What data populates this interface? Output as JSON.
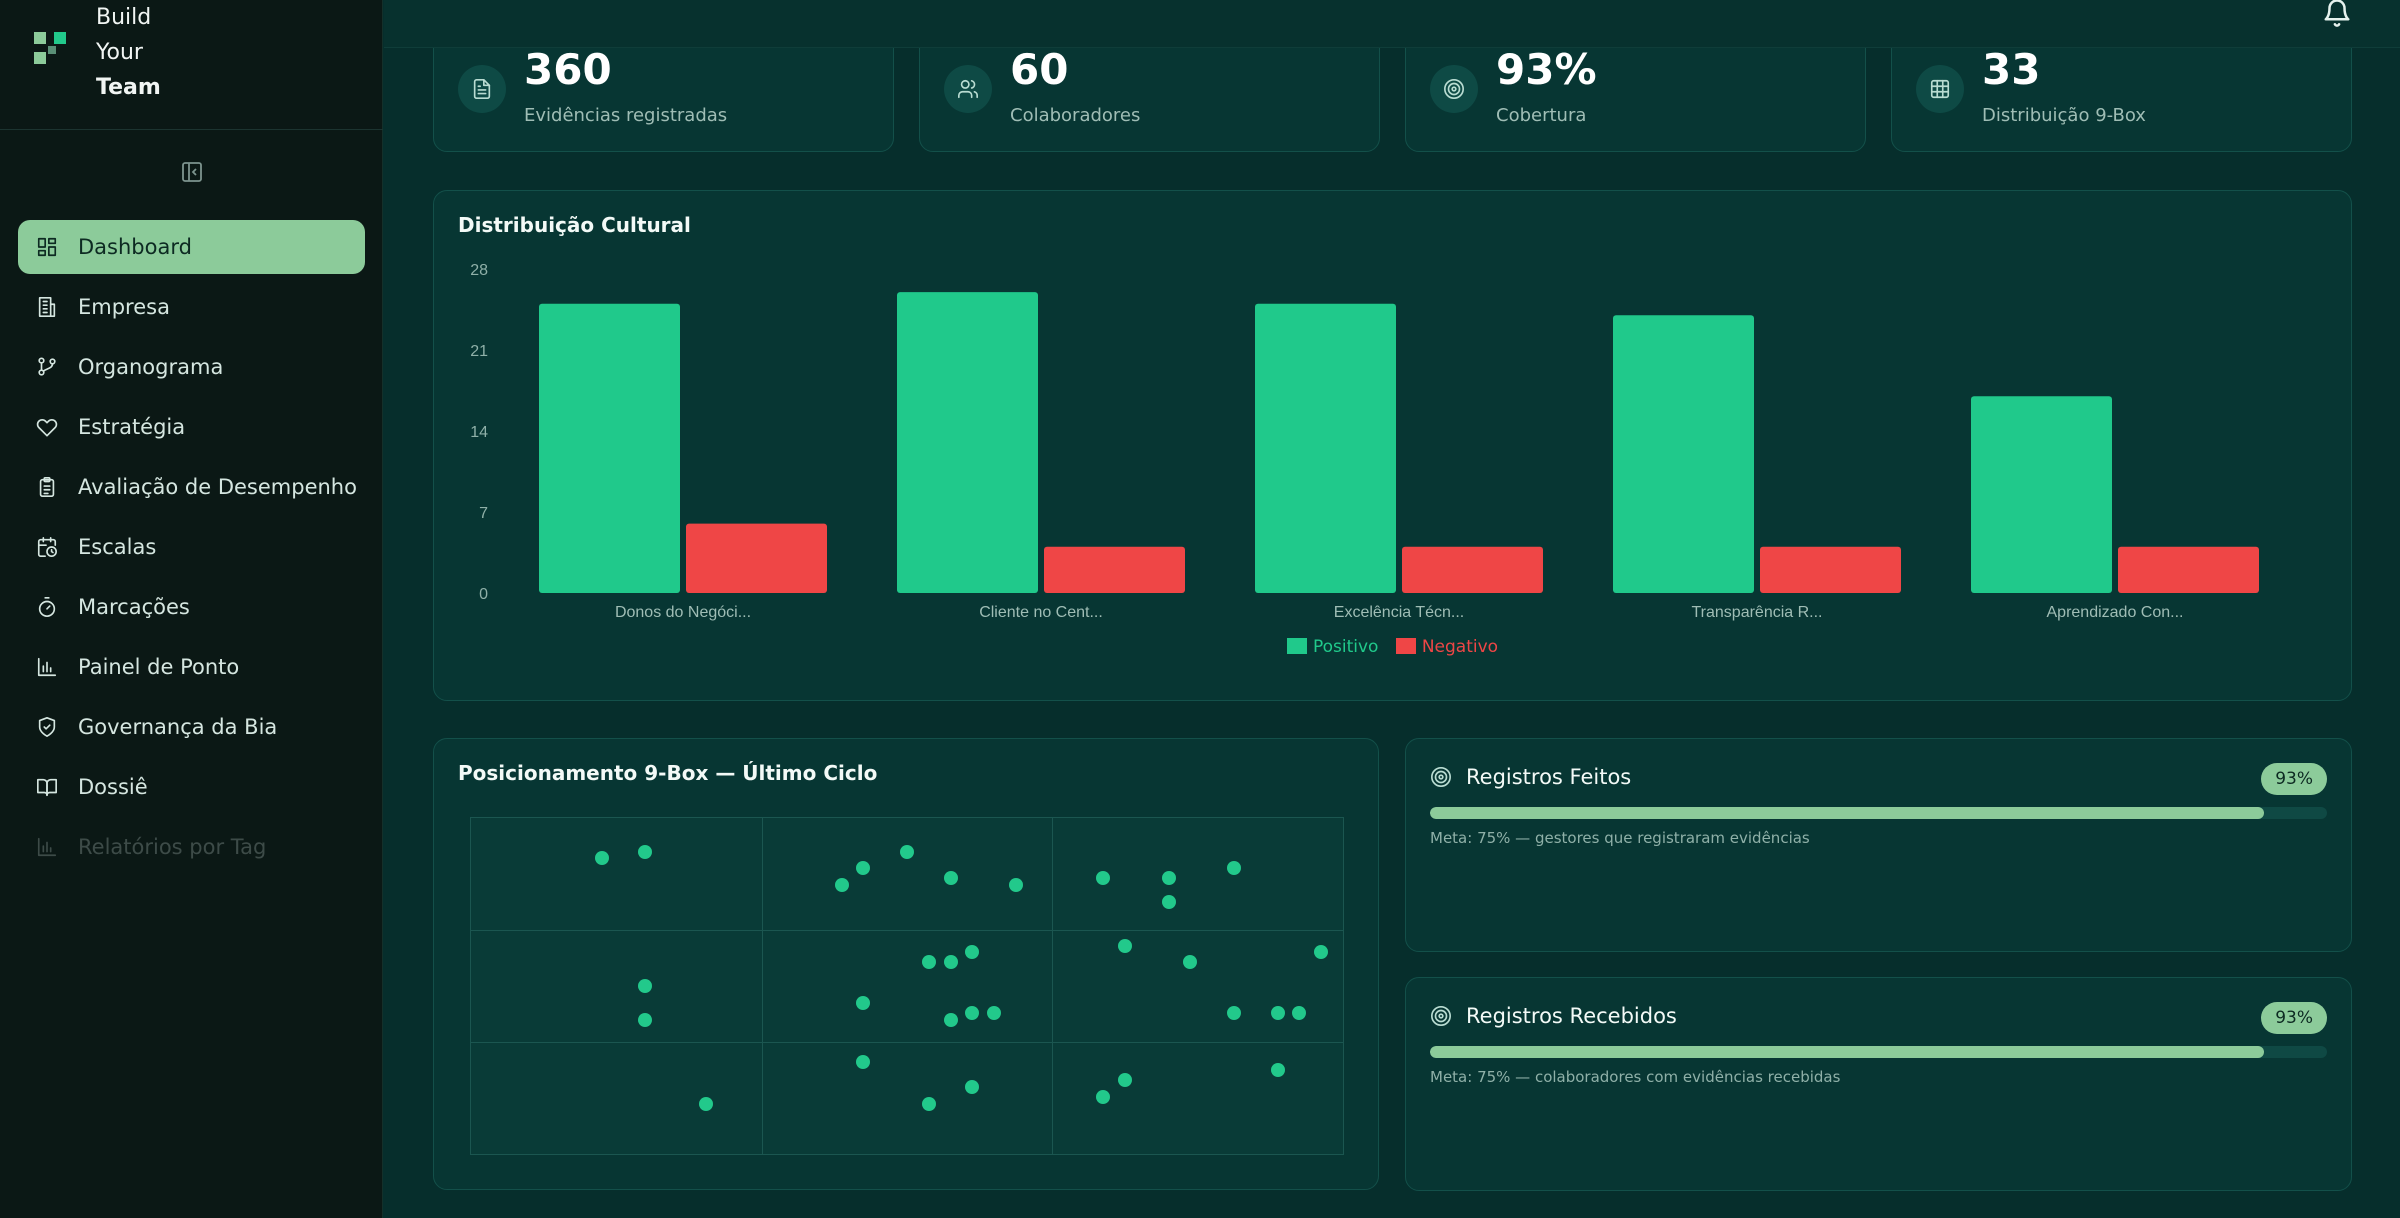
{
  "brand": {
    "line1": "Build",
    "line2": "Your",
    "line3": "Team"
  },
  "sidebar": {
    "items": [
      {
        "label": "Dashboard",
        "icon": "dashboard-icon",
        "active": true
      },
      {
        "label": "Empresa",
        "icon": "building-icon"
      },
      {
        "label": "Organograma",
        "icon": "git-branch-icon"
      },
      {
        "label": "Estratégia",
        "icon": "heart-icon"
      },
      {
        "label": "Avaliação de Desempenho",
        "icon": "clipboard-icon"
      },
      {
        "label": "Escalas",
        "icon": "calendar-clock-icon"
      },
      {
        "label": "Marcações",
        "icon": "timer-icon"
      },
      {
        "label": "Painel de Ponto",
        "icon": "bar-chart-icon"
      },
      {
        "label": "Governança da Bia",
        "icon": "shield-check-icon"
      },
      {
        "label": "Dossiê",
        "icon": "book-open-icon"
      },
      {
        "label": "Relatórios por Tag",
        "icon": "bar-chart-icon"
      }
    ]
  },
  "stats": [
    {
      "value": "360",
      "label": "Evidências registradas",
      "icon": "file-text-icon"
    },
    {
      "value": "60",
      "label": "Colaboradores",
      "icon": "users-icon"
    },
    {
      "value": "93%",
      "label": "Cobertura",
      "icon": "target-icon"
    },
    {
      "value": "33",
      "label": "Distribuição 9-Box",
      "icon": "grid-icon"
    }
  ],
  "culture_panel": {
    "title": "Distribuição Cultural"
  },
  "chart_data": {
    "type": "bar",
    "title": "Distribuição Cultural",
    "categories": [
      "Donos do Negóci...",
      "Cliente no Cent...",
      "Excelência Técn...",
      "Transparência R...",
      "Aprendizado Con..."
    ],
    "series": [
      {
        "name": "Positivo",
        "values": [
          25,
          26,
          25,
          24,
          17
        ],
        "color": "#20c98b"
      },
      {
        "name": "Negativo",
        "values": [
          6,
          4,
          4,
          4,
          4
        ],
        "color": "#ef4646"
      }
    ],
    "yticks": [
      "0",
      "7",
      "14",
      "21",
      "28"
    ],
    "ylim": [
      0,
      28
    ],
    "grid": false,
    "legend": "bottom-center"
  },
  "ninebox": {
    "title": "Posicionamento 9-Box — Último Ciclo",
    "points": [
      {
        "x": 0.15,
        "y": 0.88
      },
      {
        "x": 0.2,
        "y": 0.9
      },
      {
        "x": 0.2,
        "y": 0.5
      },
      {
        "x": 0.2,
        "y": 0.4
      },
      {
        "x": 0.27,
        "y": 0.15
      },
      {
        "x": 0.425,
        "y": 0.8
      },
      {
        "x": 0.45,
        "y": 0.85
      },
      {
        "x": 0.5,
        "y": 0.9
      },
      {
        "x": 0.55,
        "y": 0.82
      },
      {
        "x": 0.625,
        "y": 0.8
      },
      {
        "x": 0.525,
        "y": 0.57
      },
      {
        "x": 0.55,
        "y": 0.57
      },
      {
        "x": 0.575,
        "y": 0.6
      },
      {
        "x": 0.45,
        "y": 0.45
      },
      {
        "x": 0.55,
        "y": 0.4
      },
      {
        "x": 0.575,
        "y": 0.42
      },
      {
        "x": 0.6,
        "y": 0.42
      },
      {
        "x": 0.45,
        "y": 0.275
      },
      {
        "x": 0.525,
        "y": 0.15
      },
      {
        "x": 0.575,
        "y": 0.2
      },
      {
        "x": 0.725,
        "y": 0.82
      },
      {
        "x": 0.8,
        "y": 0.82
      },
      {
        "x": 0.875,
        "y": 0.85
      },
      {
        "x": 0.8,
        "y": 0.75
      },
      {
        "x": 0.75,
        "y": 0.62
      },
      {
        "x": 0.825,
        "y": 0.57
      },
      {
        "x": 0.975,
        "y": 0.6
      },
      {
        "x": 0.875,
        "y": 0.42
      },
      {
        "x": 0.925,
        "y": 0.42
      },
      {
        "x": 0.95,
        "y": 0.42
      },
      {
        "x": 0.725,
        "y": 0.17
      },
      {
        "x": 0.75,
        "y": 0.22
      },
      {
        "x": 0.925,
        "y": 0.25
      }
    ]
  },
  "registros_feitos": {
    "title": "Registros Feitos",
    "badge": "93%",
    "progress": 0.93,
    "meta": "Meta: 75% — gestores que registraram evidências"
  },
  "registros_recebidos": {
    "title": "Registros Recebidos",
    "badge": "93%",
    "progress": 0.93,
    "meta": "Meta: 75% — colaboradores com evidências recebidas"
  }
}
